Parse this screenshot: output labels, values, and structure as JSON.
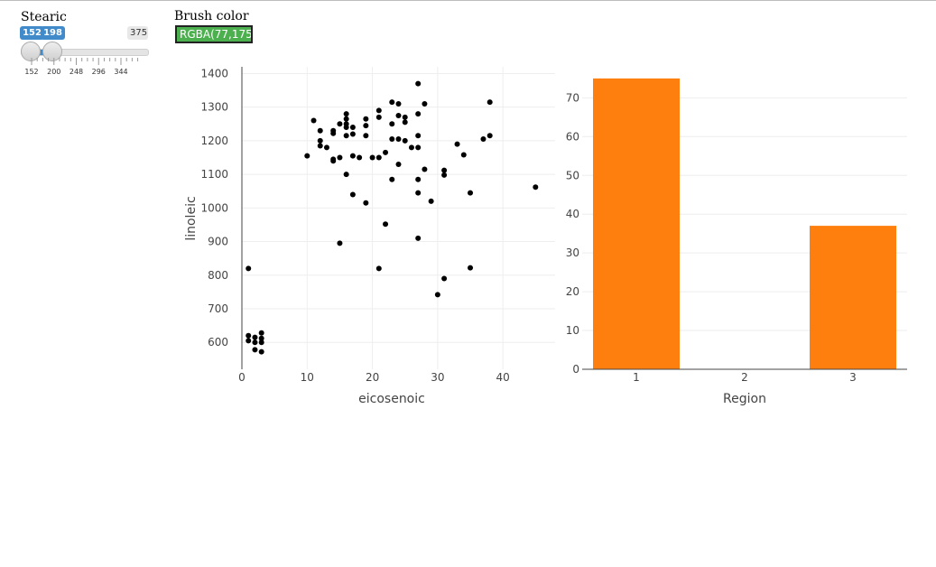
{
  "controls": {
    "slider": {
      "label": "Stearic",
      "min": 152,
      "max": 375,
      "from": 152,
      "to": 198,
      "from_label": "152",
      "to_label": "198",
      "max_label": "375",
      "ticks": [
        "152",
        "200",
        "248",
        "296",
        "344"
      ]
    },
    "color": {
      "label": "Brush color",
      "value": "RGBA(77,175",
      "swatch": "#4db04f"
    }
  },
  "chart_data": [
    {
      "type": "scatter",
      "xlabel": "eicosenoic",
      "ylabel": "linoleic",
      "xlim": [
        0,
        48
      ],
      "ylim": [
        520,
        1420
      ],
      "x_ticks": [
        0,
        10,
        20,
        30,
        40
      ],
      "y_ticks": [
        600,
        700,
        800,
        900,
        1000,
        1100,
        1200,
        1300,
        1400
      ],
      "marker_color": "#000000",
      "grid": true,
      "points": [
        [
          1,
          820
        ],
        [
          1,
          620
        ],
        [
          1,
          605
        ],
        [
          2,
          615
        ],
        [
          2,
          600
        ],
        [
          2,
          578
        ],
        [
          3,
          628
        ],
        [
          3,
          612
        ],
        [
          3,
          600
        ],
        [
          3,
          572
        ],
        [
          10,
          1155
        ],
        [
          11,
          1260
        ],
        [
          12,
          1230
        ],
        [
          12,
          1200
        ],
        [
          12,
          1185
        ],
        [
          13,
          1180
        ],
        [
          14,
          1230
        ],
        [
          14,
          1222
        ],
        [
          14,
          1145
        ],
        [
          14,
          1140
        ],
        [
          15,
          1250
        ],
        [
          15,
          1150
        ],
        [
          15,
          895
        ],
        [
          16,
          1280
        ],
        [
          16,
          1265
        ],
        [
          16,
          1250
        ],
        [
          16,
          1240
        ],
        [
          16,
          1215
        ],
        [
          16,
          1100
        ],
        [
          17,
          1240
        ],
        [
          17,
          1220
        ],
        [
          17,
          1155
        ],
        [
          17,
          1040
        ],
        [
          18,
          1150
        ],
        [
          19,
          1265
        ],
        [
          19,
          1245
        ],
        [
          19,
          1215
        ],
        [
          19,
          1015
        ],
        [
          20,
          1150
        ],
        [
          21,
          1290
        ],
        [
          21,
          1270
        ],
        [
          21,
          1150
        ],
        [
          21,
          820
        ],
        [
          22,
          1165
        ],
        [
          22,
          952
        ],
        [
          23,
          1315
        ],
        [
          23,
          1250
        ],
        [
          23,
          1205
        ],
        [
          23,
          1085
        ],
        [
          24,
          1310
        ],
        [
          24,
          1275
        ],
        [
          24,
          1205
        ],
        [
          24,
          1130
        ],
        [
          25,
          1270
        ],
        [
          25,
          1255
        ],
        [
          25,
          1200
        ],
        [
          26,
          1180
        ],
        [
          27,
          1370
        ],
        [
          27,
          1280
        ],
        [
          27,
          1215
        ],
        [
          27,
          1180
        ],
        [
          27,
          1085
        ],
        [
          27,
          1045
        ],
        [
          27,
          910
        ],
        [
          28,
          1310
        ],
        [
          28,
          1115
        ],
        [
          29,
          1020
        ],
        [
          30,
          742
        ],
        [
          31,
          1112
        ],
        [
          31,
          1098
        ],
        [
          31,
          790
        ],
        [
          33,
          1190
        ],
        [
          34,
          1158
        ],
        [
          35,
          1045
        ],
        [
          35,
          822
        ],
        [
          37,
          1205
        ],
        [
          38,
          1315
        ],
        [
          38,
          1215
        ],
        [
          45,
          1062
        ]
      ]
    },
    {
      "type": "bar",
      "xlabel": "Region",
      "ylabel": "",
      "categories": [
        "1",
        "2",
        "3"
      ],
      "values": [
        75,
        0,
        37
      ],
      "ylim": [
        0,
        78
      ],
      "y_ticks": [
        0,
        10,
        20,
        30,
        40,
        50,
        60,
        70
      ],
      "bar_color": "#ff7f0e",
      "grid": true
    }
  ]
}
